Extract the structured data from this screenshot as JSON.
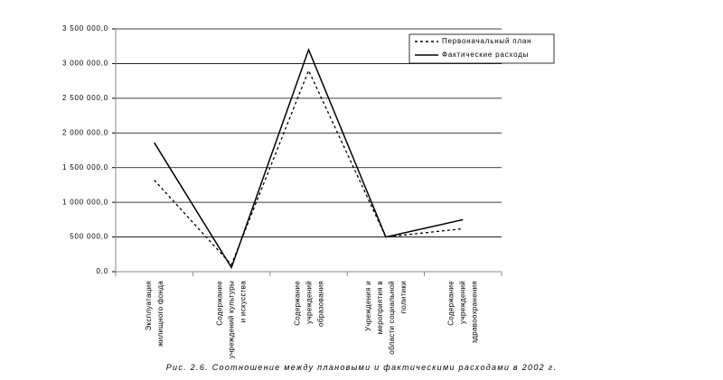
{
  "chart_data": {
    "type": "line",
    "caption": "Рис. 2.6. Соотношение между плановыми и фактическими расходами в 2002 г.",
    "categories": [
      "Эксплуатация жилищного фонда",
      "Содержание учреждений культуры и искусства",
      "Содержание учреждений образования",
      "Учреждения и мероприятия в области социальной политики",
      "Содержание учреждений здравоохранения"
    ],
    "series": [
      {
        "name": "Первоначальный план",
        "color": "#000000",
        "line_style": "dashed",
        "values": [
          1320000,
          100000,
          2900000,
          500000,
          620000
        ]
      },
      {
        "name": "Фактические расходы",
        "color": "#000000",
        "line_style": "solid",
        "values": [
          1860000,
          60000,
          3200000,
          500000,
          750000
        ]
      }
    ],
    "ylim": [
      0,
      3500000
    ],
    "yticks": [
      {
        "value": 0,
        "label": "0,0"
      },
      {
        "value": 500000,
        "label": "500 000,0"
      },
      {
        "value": 1000000,
        "label": "1 000 000,0"
      },
      {
        "value": 1500000,
        "label": "1 500 000,0"
      },
      {
        "value": 2000000,
        "label": "2 000 000,0"
      },
      {
        "value": 2500000,
        "label": "2 500 000,0"
      },
      {
        "value": 3000000,
        "label": "3 000 000,0"
      },
      {
        "value": 3500000,
        "label": "3 500 000,0"
      }
    ],
    "grid": true,
    "legend": "top-right"
  }
}
